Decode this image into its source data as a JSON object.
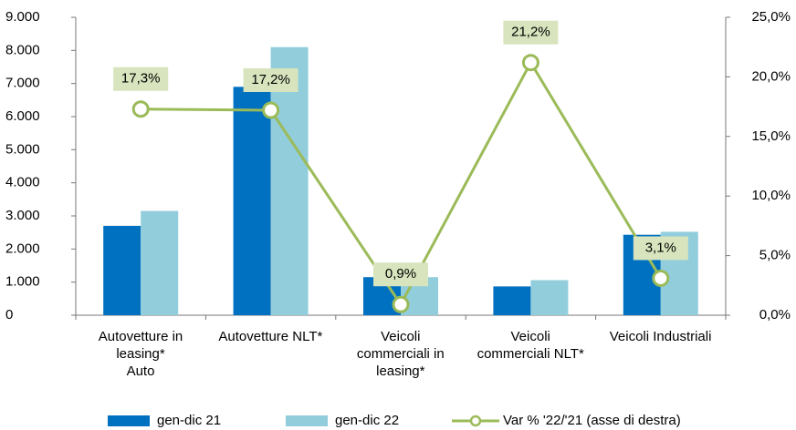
{
  "chart_data": {
    "type": "bar",
    "categories": [
      "Autovetture in\nleasing*\nAuto",
      "Autovetture NLT*",
      "Veicoli\ncommerciali in\nleasing*",
      "Veicoli\ncommerciali NLT*",
      "Veicoli Industriali"
    ],
    "series": [
      {
        "name": "gen-dic 21",
        "color": "#0070c0",
        "values": [
          2700,
          6900,
          1150,
          870,
          2430
        ]
      },
      {
        "name": "gen-dic 22",
        "color": "#92cddc",
        "values": [
          3150,
          8100,
          1150,
          1060,
          2520
        ]
      },
      {
        "name": "Var % '22/'21 (asse di destra)",
        "type": "line",
        "axis": "y2",
        "color": "#9bbb59",
        "values": [
          17.3,
          17.2,
          0.9,
          21.2,
          3.1
        ],
        "value_labels": [
          "17,3%",
          "17,2%",
          "0,9%",
          "21,2%",
          "3,1%"
        ]
      }
    ],
    "ylim": [
      0,
      9000
    ],
    "yticks": [
      0,
      {
        "value": 1000,
        "label": "1.000"
      },
      {
        "value": 2000,
        "label": "2.000"
      },
      {
        "value": 3000,
        "label": "3.000"
      },
      {
        "value": 4000,
        "label": "4.000"
      },
      {
        "value": 5000,
        "label": "5.000"
      },
      {
        "value": 6000,
        "label": "6.000"
      },
      {
        "value": 7000,
        "label": "7.000"
      },
      {
        "value": 8000,
        "label": "8.000"
      },
      {
        "value": 9000,
        "label": "9.000"
      }
    ],
    "y2lim": [
      0,
      25
    ],
    "y2ticks": [
      {
        "value": 0,
        "label": "0,0%"
      },
      {
        "value": 5,
        "label": "5,0%"
      },
      {
        "value": 10,
        "label": "10,0%"
      },
      {
        "value": 15,
        "label": "15,0%"
      },
      {
        "value": 20,
        "label": "20,0%"
      },
      {
        "value": 25,
        "label": "25,0%"
      }
    ],
    "legend": "bottom"
  }
}
